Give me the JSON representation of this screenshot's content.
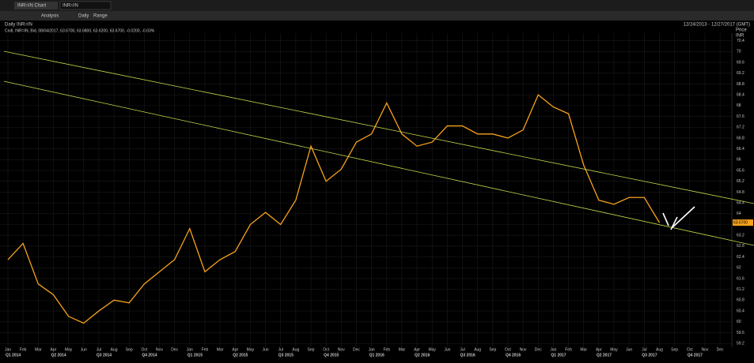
{
  "toolbar": {
    "tab": "INR=IN Chart",
    "search": "INR=IN",
    "analysis": "Analysis",
    "interval": "Daily",
    "range": "Range"
  },
  "chart_data": {
    "type": "line",
    "title": "Daily INR=IN",
    "date_range": "12/24/2013 - 12/27/2017 (GMT)",
    "legend_text": "Cndl, INR=IN, Bid, 08/04/2017, 63.6700, 63.6800, 63.6200, 63.6700, -0.0200, -0.03%",
    "y_label": "Price",
    "y_unit": "INR",
    "last_price": "63.6700",
    "categories": [
      "Jan",
      "Feb",
      "Mar",
      "Apr",
      "May",
      "Jun",
      "Jul",
      "Aug",
      "Sep",
      "Oct",
      "Nov",
      "Dec",
      "Jan",
      "Feb",
      "Mar",
      "Apr",
      "May",
      "Jun",
      "Jul",
      "Aug",
      "Sep",
      "Oct",
      "Nov",
      "Dec",
      "Jan",
      "Feb",
      "Mar",
      "Apr",
      "May",
      "Jun",
      "Jul",
      "Aug",
      "Sep",
      "Oct",
      "Nov",
      "Dec",
      "Jan",
      "Feb",
      "Mar",
      "Apr",
      "May",
      "Jun",
      "Jul",
      "Aug",
      "Sep",
      "Oct",
      "Nov",
      "Dec"
    ],
    "quarters": [
      "Q1 2014",
      "Q2 2014",
      "Q3 2014",
      "Q4 2014",
      "Q1 2015",
      "Q2 2015",
      "Q3 2015",
      "Q4 2015",
      "Q1 2016",
      "Q2 2016",
      "Q3 2016",
      "Q4 2016",
      "Q1 2017",
      "Q2 2017",
      "Q3 2017",
      "Q4 2017"
    ],
    "series": [
      {
        "name": "INR=IN",
        "color": "#f7a21b",
        "values": [
          62.3,
          62.9,
          61.4,
          61.0,
          60.2,
          59.95,
          60.4,
          60.8,
          60.7,
          61.4,
          61.85,
          62.3,
          63.45,
          61.85,
          62.3,
          62.6,
          63.6,
          64.05,
          63.6,
          64.5,
          66.5,
          65.2,
          65.65,
          66.65,
          66.95,
          68.1,
          66.95,
          66.5,
          66.65,
          67.25,
          67.25,
          66.95,
          66.95,
          66.8,
          67.1,
          68.4,
          67.95,
          67.7,
          65.8,
          64.5,
          64.35,
          64.6,
          64.6,
          63.67,
          null,
          null,
          null,
          null
        ]
      }
    ],
    "ylim": [
      59.0,
      70.8
    ],
    "yticks": [
      59.2,
      59.6,
      60,
      60.4,
      60.8,
      61.2,
      61.6,
      62,
      62.4,
      62.8,
      63.2,
      63.6,
      64,
      64.4,
      64.8,
      65.2,
      65.6,
      66,
      66.4,
      66.8,
      67.2,
      67.6,
      68,
      68.4,
      68.8,
      69.2,
      69.6,
      70,
      70.4
    ],
    "grid": true
  }
}
